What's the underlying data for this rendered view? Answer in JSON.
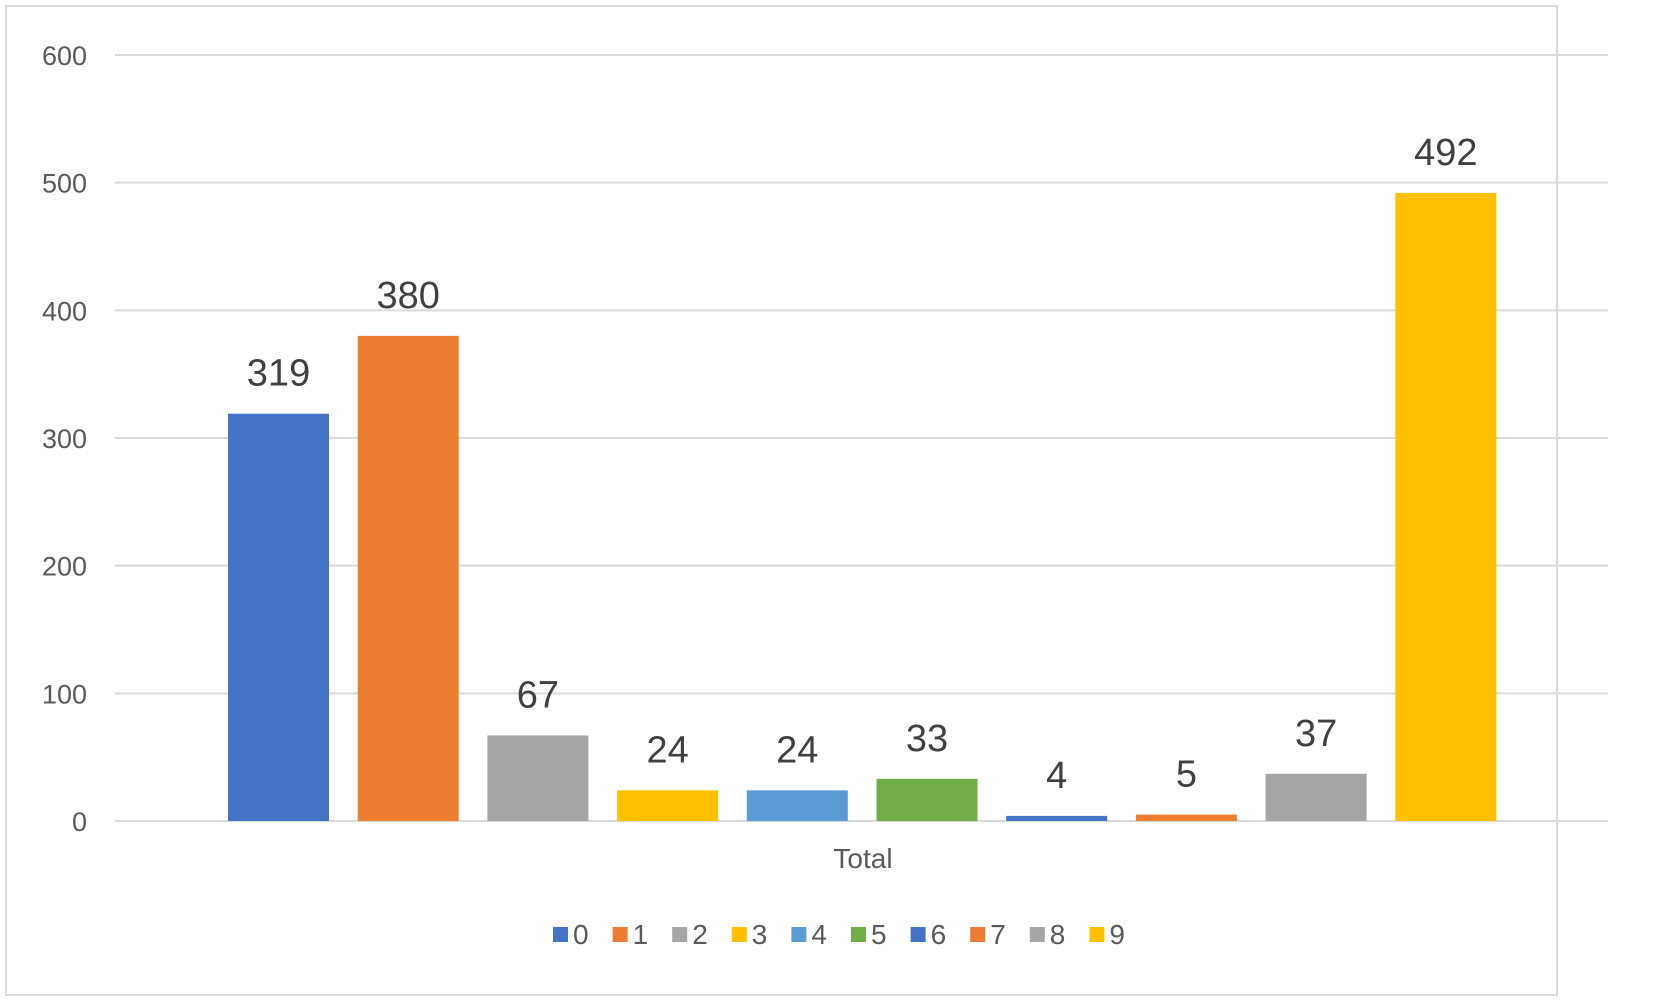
{
  "chart_data": {
    "type": "bar",
    "categories": [
      "Total"
    ],
    "series": [
      {
        "name": "0",
        "values": [
          319
        ],
        "color": "#4472C4"
      },
      {
        "name": "1",
        "values": [
          380
        ],
        "color": "#ED7D31"
      },
      {
        "name": "2",
        "values": [
          67
        ],
        "color": "#A5A5A5"
      },
      {
        "name": "3",
        "values": [
          24
        ],
        "color": "#FFC000"
      },
      {
        "name": "4",
        "values": [
          24
        ],
        "color": "#5B9BD5"
      },
      {
        "name": "5",
        "values": [
          33
        ],
        "color": "#70AD47"
      },
      {
        "name": "6",
        "values": [
          4
        ],
        "color": "#4472C4"
      },
      {
        "name": "7",
        "values": [
          5
        ],
        "color": "#ED7D31"
      },
      {
        "name": "8",
        "values": [
          37
        ],
        "color": "#A5A5A5"
      },
      {
        "name": "9",
        "values": [
          492
        ],
        "color": "#FFC000"
      }
    ],
    "yticks": [
      "0",
      "100",
      "200",
      "300",
      "400",
      "500",
      "600"
    ],
    "ylim": [
      0,
      600
    ],
    "grid": true,
    "legend_position": "bottom",
    "data_labels": true
  }
}
